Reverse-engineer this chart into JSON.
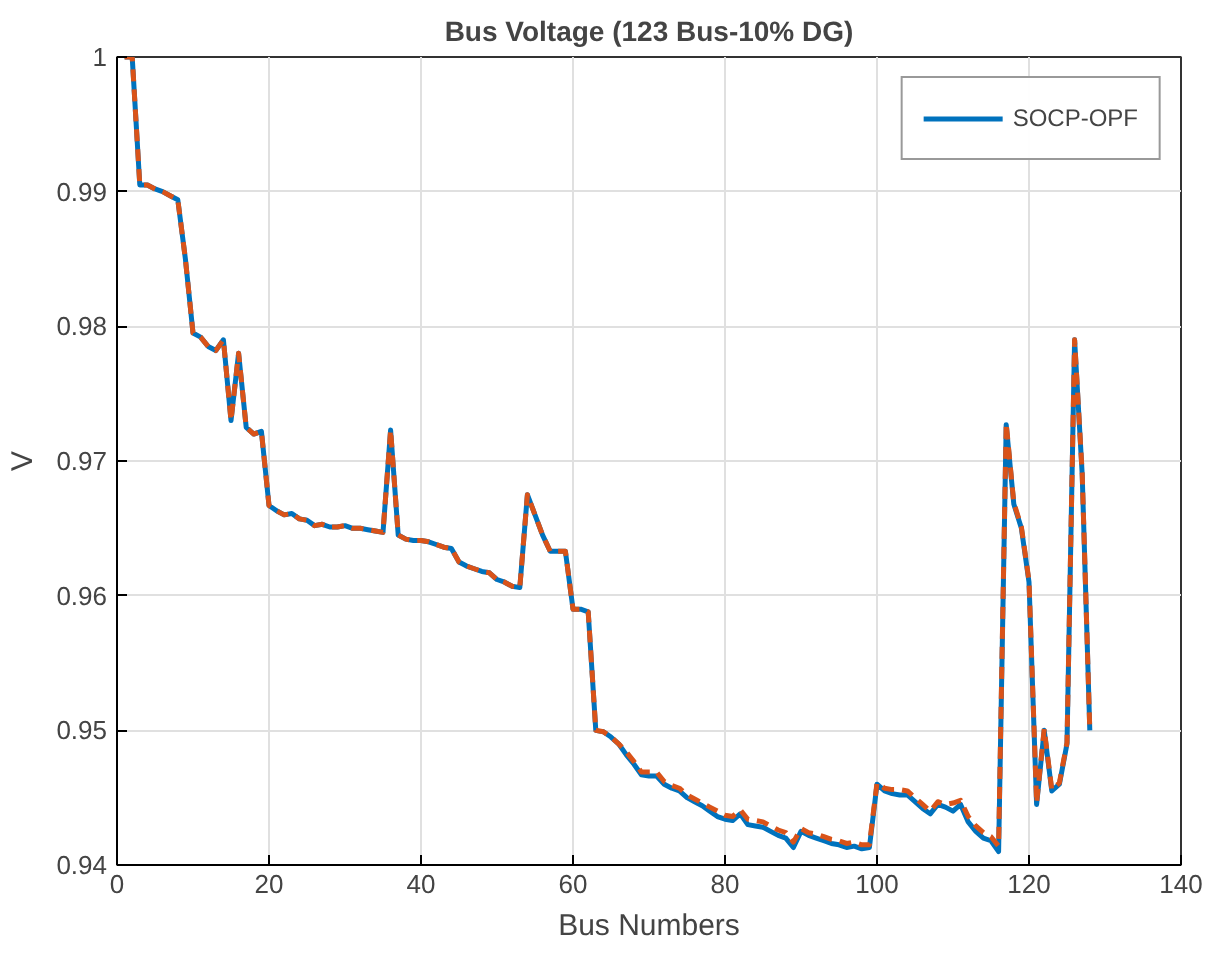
{
  "chart_data": {
    "type": "line",
    "title": "Bus Voltage (123 Bus-10% DG)",
    "xlabel": "Bus Numbers",
    "ylabel": "V",
    "x": [
      1,
      2,
      3,
      4,
      5,
      6,
      7,
      8,
      9,
      10,
      11,
      12,
      13,
      14,
      15,
      16,
      17,
      18,
      19,
      20,
      21,
      22,
      23,
      24,
      25,
      26,
      27,
      28,
      29,
      30,
      31,
      32,
      33,
      34,
      35,
      36,
      37,
      38,
      39,
      40,
      41,
      42,
      43,
      44,
      45,
      46,
      47,
      48,
      49,
      50,
      51,
      52,
      53,
      54,
      55,
      56,
      57,
      58,
      59,
      60,
      61,
      62,
      63,
      64,
      65,
      66,
      67,
      68,
      69,
      70,
      71,
      72,
      73,
      74,
      75,
      76,
      77,
      78,
      79,
      80,
      81,
      82,
      83,
      84,
      85,
      86,
      87,
      88,
      89,
      90,
      91,
      92,
      93,
      94,
      95,
      96,
      97,
      98,
      99,
      100,
      101,
      102,
      103,
      104,
      105,
      106,
      107,
      108,
      109,
      110,
      111,
      112,
      113,
      114,
      115,
      116,
      117,
      118,
      119,
      120,
      121,
      122,
      123,
      124,
      125,
      126,
      127,
      128
    ],
    "series": [
      {
        "name": "SOCP-OPF",
        "color": "#0072bd",
        "line_style": "solid",
        "values": [
          1.0,
          1.0,
          0.9905,
          0.9905,
          0.9902,
          0.99,
          0.9897,
          0.9894,
          0.985,
          0.9795,
          0.9792,
          0.9785,
          0.9782,
          0.979,
          0.973,
          0.978,
          0.9725,
          0.972,
          0.9722,
          0.9667,
          0.9663,
          0.966,
          0.9661,
          0.9657,
          0.9656,
          0.9652,
          0.9653,
          0.9651,
          0.9651,
          0.9652,
          0.965,
          0.965,
          0.9649,
          0.9648,
          0.9647,
          0.9723,
          0.9645,
          0.9642,
          0.9641,
          0.9641,
          0.964,
          0.9638,
          0.9636,
          0.9635,
          0.9625,
          0.9622,
          0.962,
          0.9618,
          0.9617,
          0.9612,
          0.961,
          0.9607,
          0.9606,
          0.9675,
          0.966,
          0.9645,
          0.9633,
          0.9633,
          0.9633,
          0.959,
          0.959,
          0.9588,
          0.95,
          0.9499,
          0.9495,
          0.949,
          0.9482,
          0.9475,
          0.9467,
          0.9466,
          0.9466,
          0.946,
          0.9457,
          0.9455,
          0.945,
          0.9447,
          0.9444,
          0.944,
          0.9436,
          0.9434,
          0.9433,
          0.9438,
          0.943,
          0.9429,
          0.9428,
          0.9425,
          0.9422,
          0.942,
          0.9413,
          0.9425,
          0.9422,
          0.942,
          0.9418,
          0.9416,
          0.9415,
          0.9413,
          0.9414,
          0.9412,
          0.9413,
          0.946,
          0.9455,
          0.9453,
          0.9452,
          0.9452,
          0.9447,
          0.9442,
          0.9438,
          0.9445,
          0.9443,
          0.944,
          0.9445,
          0.9432,
          0.9425,
          0.942,
          0.9418,
          0.941,
          0.9727,
          0.9668,
          0.965,
          0.961,
          0.9445,
          0.95,
          0.9455,
          0.946,
          0.949,
          0.979,
          0.969,
          0.95
        ]
      },
      {
        "color": "#d95319",
        "line_style": "dashed",
        "values": [
          1.0,
          1.0,
          0.9905,
          0.9905,
          0.9902,
          0.99,
          0.9897,
          0.9894,
          0.985,
          0.9795,
          0.9792,
          0.9785,
          0.9782,
          0.979,
          0.973,
          0.978,
          0.9725,
          0.972,
          0.9722,
          0.9667,
          0.9663,
          0.966,
          0.9661,
          0.9657,
          0.9656,
          0.9652,
          0.9653,
          0.9651,
          0.9651,
          0.9652,
          0.965,
          0.965,
          0.9649,
          0.9648,
          0.9647,
          0.9723,
          0.9645,
          0.9642,
          0.9641,
          0.9641,
          0.964,
          0.9638,
          0.9636,
          0.9635,
          0.9625,
          0.9622,
          0.962,
          0.9618,
          0.9617,
          0.9612,
          0.961,
          0.9607,
          0.9606,
          0.9675,
          0.966,
          0.9645,
          0.9633,
          0.9633,
          0.9633,
          0.959,
          0.959,
          0.9588,
          0.95,
          0.9499,
          0.9495,
          0.949,
          0.9484,
          0.9477,
          0.9469,
          0.9469,
          0.9469,
          0.9462,
          0.9459,
          0.9457,
          0.9452,
          0.9449,
          0.9446,
          0.9443,
          0.944,
          0.9437,
          0.9436,
          0.9441,
          0.9434,
          0.9433,
          0.9432,
          0.9429,
          0.9426,
          0.9424,
          0.9417,
          0.9427,
          0.9424,
          0.9423,
          0.9421,
          0.9419,
          0.9418,
          0.9416,
          0.9417,
          0.9415,
          0.9415,
          0.9461,
          0.9457,
          0.9456,
          0.9456,
          0.9455,
          0.945,
          0.9445,
          0.944,
          0.9447,
          0.9445,
          0.9446,
          0.9448,
          0.9436,
          0.9429,
          0.9424,
          0.9421,
          0.9414,
          0.9728,
          0.9669,
          0.9651,
          0.9611,
          0.9446,
          0.9501,
          0.9456,
          0.9461,
          0.9491,
          0.979,
          0.9691,
          0.95
        ]
      }
    ],
    "xlim": [
      0,
      140
    ],
    "xticks": [
      0,
      20,
      40,
      60,
      80,
      100,
      120,
      140
    ],
    "ylim": [
      0.94,
      1
    ],
    "yticks": [
      0.94,
      0.95,
      0.96,
      0.97,
      0.98,
      0.99,
      1
    ],
    "grid": true,
    "legend": "top right"
  }
}
